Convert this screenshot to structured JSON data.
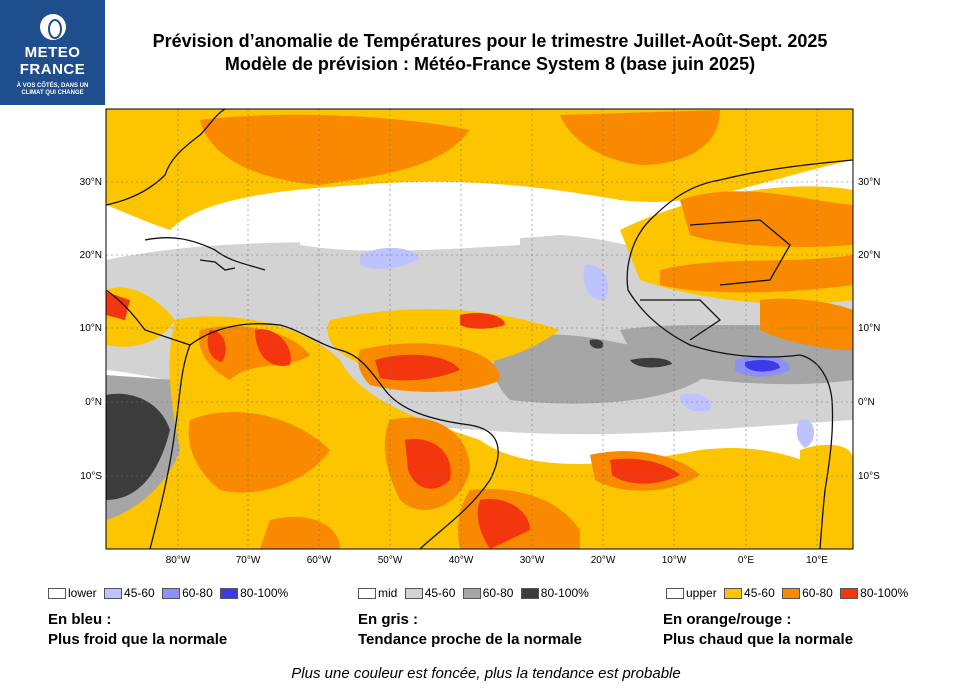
{
  "logo": {
    "line1": "METEO",
    "line2": "FRANCE",
    "tagline1": "À VOS CÔTÉS, DANS UN",
    "tagline2": "CLIMAT QUI CHANGE"
  },
  "title": {
    "line1": "Prévision d’anomalie de Températures pour le trimestre Juillet-Août-Sept. 2025",
    "line2": "Modèle de prévision : Météo-France System 8 (base juin 2025)"
  },
  "map": {
    "lat_labels": [
      "30°N",
      "20°N",
      "10°N",
      "0°N",
      "10°S"
    ],
    "lon_labels": [
      "80°W",
      "70°W",
      "60°W",
      "50°W",
      "40°W",
      "30°W",
      "20°W",
      "10°W",
      "0°E",
      "10°E"
    ],
    "colors": {
      "blue_45_60": "#bcc3ff",
      "blue_60_80": "#8d90f5",
      "blue_80_100": "#3b3bea",
      "grey_45_60": "#d3d3d3",
      "grey_60_80": "#a6a6a6",
      "grey_80_100": "#3c3c3c",
      "orange_45_60": "#fdc400",
      "orange_60_80": "#f98a00",
      "orange_80_100": "#f3360d"
    }
  },
  "legend": {
    "cold": {
      "lower": "lower",
      "c1": "45-60",
      "c2": "60-80",
      "c3": "80-100%"
    },
    "mid": {
      "mid": "mid",
      "c1": "45-60",
      "c2": "60-80",
      "c3": "80-100%"
    },
    "warm": {
      "upper": "upper",
      "c1": "45-60",
      "c2": "60-80",
      "c3": "80-100%"
    }
  },
  "explanations": {
    "blue": {
      "line1": "En bleu :",
      "line2": "Plus froid que la normale"
    },
    "grey": {
      "line1": "En gris :",
      "line2": "Tendance proche de la normale"
    },
    "orange": {
      "line1": "En orange/rouge :",
      "line2": "Plus chaud que la normale"
    }
  },
  "footer": "Plus une couleur est foncée, plus la tendance est probable"
}
